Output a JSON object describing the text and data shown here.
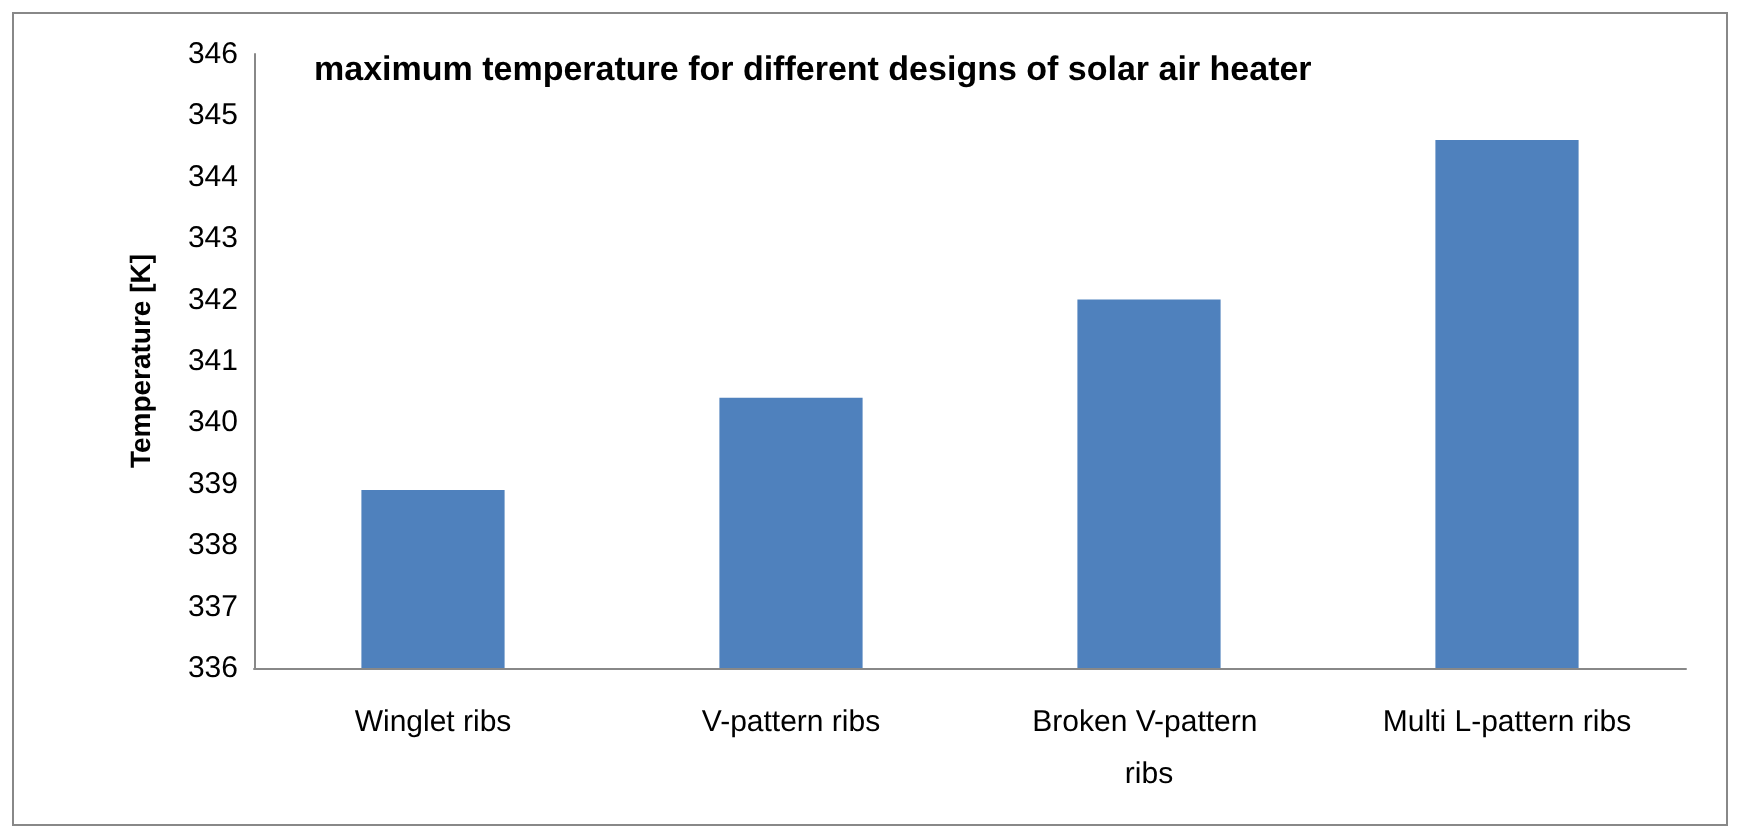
{
  "chart_data": {
    "type": "bar",
    "title": "maximum temperature for different designs of solar air heater",
    "ylabel": "Temperature [K]",
    "categories": [
      "Winglet ribs",
      "V-pattern ribs",
      "Broken V-pattern ribs",
      "Multi L-pattern ribs"
    ],
    "values": [
      338.9,
      340.4,
      342.0,
      344.6
    ],
    "color": "#4f81bd",
    "ylim": [
      336,
      346
    ],
    "yticks": [
      336,
      337,
      338,
      339,
      340,
      341,
      342,
      343,
      344,
      345,
      346
    ],
    "grid": false
  }
}
